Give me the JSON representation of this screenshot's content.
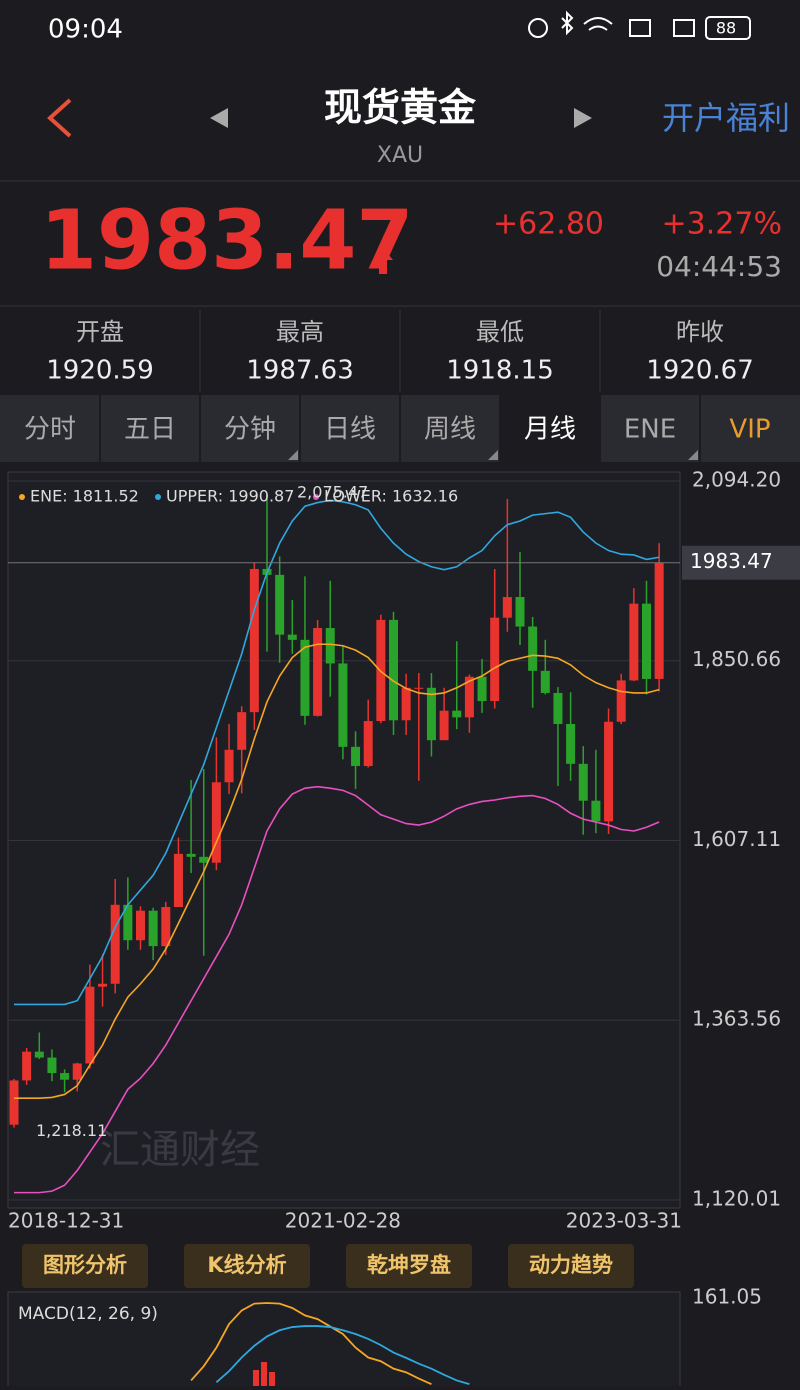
{
  "status": {
    "time": "09:04",
    "battery": "88"
  },
  "header": {
    "title": "现货黄金",
    "subtitle": "XAU",
    "action": "开户福利"
  },
  "quote": {
    "price": "1983.47",
    "change": "+62.80",
    "change_pct": "+3.27%",
    "time": "04:44:53"
  },
  "stats": [
    {
      "label": "开盘",
      "value": "1920.59"
    },
    {
      "label": "最高",
      "value": "1987.63"
    },
    {
      "label": "最低",
      "value": "1918.15"
    },
    {
      "label": "昨收",
      "value": "1920.67"
    }
  ],
  "tabs": [
    "分时",
    "五日",
    "分钟",
    "日线",
    "周线",
    "月线",
    "ENE",
    "VIP"
  ],
  "tools": [
    "图形分析",
    "K线分析",
    "乾坤罗盘",
    "动力趋势"
  ],
  "chart_data": [
    {
      "type": "candlestick",
      "watermark": "汇通财经",
      "categories": [
        "2018-12-31",
        null,
        null,
        null,
        null,
        null,
        null,
        null,
        null,
        null,
        null,
        null,
        null,
        null,
        null,
        null,
        null,
        null,
        null,
        null,
        null,
        null,
        null,
        null,
        null,
        null,
        "2021-02-28",
        null,
        null,
        null,
        null,
        null,
        null,
        null,
        null,
        null,
        null,
        null,
        null,
        null,
        null,
        null,
        null,
        null,
        null,
        null,
        null,
        null,
        null,
        null,
        null,
        "2023-03-31"
      ],
      "open": [
        1222,
        1282,
        1321,
        1313,
        1292,
        1283,
        1305,
        1409,
        1413,
        1520,
        1472,
        1512,
        1464,
        1517,
        1589,
        1585,
        1577,
        1686,
        1730,
        1781,
        1975,
        1967,
        1886,
        1879,
        1776,
        1895,
        1847,
        1734,
        1708,
        1769,
        1906,
        1770,
        1814,
        1814,
        1743,
        1783,
        1774,
        1829,
        1796,
        1909,
        1937,
        1897,
        1837,
        1807,
        1765,
        1711,
        1661,
        1633,
        1768,
        1824,
        1928,
        1826
      ],
      "high": [
        1284,
        1326,
        1347,
        1324,
        1297,
        1306,
        1439,
        1453,
        1555,
        1557,
        1518,
        1516,
        1524,
        1611,
        1689,
        1704,
        1747,
        1765,
        1789,
        1984,
        2075.47,
        1992,
        1933,
        1965,
        1906,
        1959,
        1871,
        1755,
        1798,
        1913,
        1917,
        1833,
        1834,
        1834,
        1814,
        1877,
        1832,
        1853,
        1975,
        2070,
        1998,
        1910,
        1879,
        1815,
        1808,
        1735,
        1730,
        1786,
        1833,
        1949,
        1959,
        2010
      ],
      "low": [
        1218.11,
        1276,
        1311,
        1281,
        1266,
        1267,
        1298,
        1382,
        1400,
        1459,
        1459,
        1445,
        1452,
        1517,
        1563,
        1451,
        1567,
        1670,
        1671,
        1757,
        1863,
        1848,
        1860,
        1764,
        1775,
        1802,
        1717,
        1677,
        1706,
        1766,
        1750,
        1750,
        1688,
        1721,
        1746,
        1758,
        1753,
        1780,
        1786,
        1890,
        1872,
        1787,
        1805,
        1681,
        1688,
        1615,
        1617,
        1616,
        1765,
        1823,
        1805,
        1809
      ],
      "close": [
        1282,
        1321,
        1313,
        1292,
        1283,
        1305,
        1409,
        1413,
        1520,
        1472,
        1512,
        1464,
        1517,
        1589,
        1585,
        1577,
        1686,
        1730,
        1781,
        1975,
        1967,
        1886,
        1879,
        1776,
        1895,
        1847,
        1734,
        1708,
        1769,
        1906,
        1770,
        1814,
        1814,
        1743,
        1783,
        1774,
        1829,
        1796,
        1909,
        1937,
        1897,
        1837,
        1807,
        1765,
        1711,
        1661,
        1633,
        1768,
        1824,
        1928,
        1826,
        1983.47
      ],
      "up_color": "#e8332e",
      "down_color": "#2aa32a",
      "series": [
        {
          "name": "ENE",
          "label": "ENE: 1811.52",
          "color": "#f5a623",
          "values": [
            1258,
            1258,
            1258,
            1259,
            1263,
            1275,
            1303,
            1330,
            1365,
            1395,
            1413,
            1433,
            1460,
            1495,
            1530,
            1565,
            1605,
            1645,
            1690,
            1745,
            1795,
            1830,
            1855,
            1869,
            1873,
            1873,
            1871,
            1865,
            1855,
            1836,
            1823,
            1813,
            1807,
            1805,
            1807,
            1814,
            1823,
            1830,
            1841,
            1850,
            1854,
            1858,
            1857,
            1854,
            1845,
            1831,
            1821,
            1814,
            1809,
            1807,
            1807,
            1811.52
          ]
        },
        {
          "name": "UPPER",
          "label": "UPPER: 1990.87",
          "color": "#2fa8e0",
          "values": [
            1385,
            1385,
            1385,
            1385,
            1385,
            1390,
            1420,
            1450,
            1490,
            1520,
            1540,
            1560,
            1590,
            1630,
            1670,
            1710,
            1760,
            1810,
            1860,
            1920,
            1970,
            2010,
            2040,
            2060,
            2065,
            2068,
            2066,
            2062,
            2055,
            2030,
            2010,
            1995,
            1985,
            1978,
            1974,
            1978,
            1990,
            2000,
            2020,
            2035,
            2040,
            2048,
            2050,
            2052,
            2045,
            2025,
            2010,
            2000,
            1995,
            1994,
            1988,
            1990.87
          ]
        },
        {
          "name": "LOWER",
          "label": "LOWER: 1632.16",
          "color": "#e84fc0",
          "values": [
            1130,
            1130,
            1130,
            1132,
            1140,
            1160,
            1185,
            1210,
            1240,
            1270,
            1285,
            1305,
            1330,
            1360,
            1390,
            1420,
            1450,
            1480,
            1520,
            1570,
            1620,
            1650,
            1670,
            1678,
            1680,
            1678,
            1675,
            1668,
            1655,
            1642,
            1636,
            1630,
            1628,
            1632,
            1640,
            1650,
            1656,
            1660,
            1662,
            1665,
            1667,
            1668,
            1664,
            1656,
            1644,
            1636,
            1632,
            1628,
            1622,
            1620,
            1625,
            1632.16
          ]
        }
      ],
      "ylim": [
        1120.01,
        2094.2
      ],
      "yticks": [
        {
          "value": 2094.2,
          "label": "2,094.20"
        },
        {
          "value": 1850.66,
          "label": "1,850.66"
        },
        {
          "value": 1607.11,
          "label": "1,607.11"
        },
        {
          "value": 1363.56,
          "label": "1,363.56"
        },
        {
          "value": 1120.01,
          "label": "1,120.01"
        }
      ],
      "last_price": 1983.47,
      "max_label": {
        "value": 2075.47,
        "label": "2,075.47"
      },
      "min_label": {
        "value": 1218.11,
        "label": "1,218.11"
      },
      "grid": true
    },
    {
      "type": "line",
      "title": "MACD(12, 26, 9)",
      "series": [
        {
          "name": "DIF",
          "color": "#f5a623",
          "values": [
            null,
            null,
            null,
            null,
            null,
            null,
            null,
            null,
            null,
            null,
            null,
            null,
            null,
            null,
            94.5,
            106,
            121,
            140,
            151,
            156.5,
            157,
            156.5,
            153,
            147,
            144,
            138,
            132,
            121,
            113,
            110,
            104,
            101,
            96,
            91.5,
            null,
            null,
            null,
            null,
            null,
            null,
            null,
            null,
            null,
            null,
            null,
            null,
            null,
            null,
            null,
            null,
            null,
            null
          ]
        },
        {
          "name": "DEA",
          "color": "#2fa8e0",
          "values": [
            null,
            null,
            null,
            null,
            null,
            null,
            null,
            null,
            null,
            null,
            null,
            null,
            null,
            null,
            null,
            null,
            93,
            102,
            113,
            122.5,
            130,
            135,
            137.6,
            138.4,
            138.4,
            137.6,
            135,
            132,
            128,
            123,
            117,
            112.7,
            108,
            104,
            99,
            94.5,
            91.5,
            null,
            null,
            null,
            null,
            null,
            null,
            null,
            null,
            null,
            null,
            null,
            null,
            null,
            null,
            null
          ]
        }
      ],
      "ylim": [
        90,
        161.05
      ],
      "yticks": [
        161.05
      ]
    }
  ]
}
